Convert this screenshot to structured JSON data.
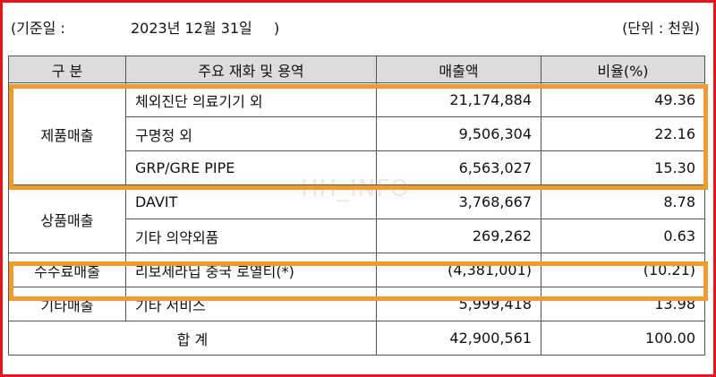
{
  "header": {
    "left": "(기준일 :",
    "date": "2023년 12월 31일",
    "close": ")",
    "unit": "(단위 : 천원)"
  },
  "table": {
    "columns": [
      "구  분",
      "주요 재화 및 용역",
      "매출액",
      "비율(%)"
    ],
    "groups": [
      {
        "category": "제품매출",
        "rows": [
          {
            "item": "체외진단 의료기기 외",
            "sales": "21,174,884",
            "ratio": "49.36"
          },
          {
            "item": "구명정 외",
            "sales": "9,506,304",
            "ratio": "22.16"
          },
          {
            "item": "GRP/GRE PIPE",
            "sales": "6,563,027",
            "ratio": "15.30"
          }
        ]
      },
      {
        "category": "상품매출",
        "rows": [
          {
            "item": "DAVIT",
            "sales": "3,768,667",
            "ratio": "8.78"
          },
          {
            "item": "기타 의약외품",
            "sales": "269,262",
            "ratio": "0.63"
          }
        ]
      },
      {
        "category": "수수료매출",
        "rows": [
          {
            "item": "리보세라닙 중국 로열티(*)",
            "sales": "(4,381,001)",
            "ratio": "(10.21)"
          }
        ]
      },
      {
        "category": "기타매출",
        "rows": [
          {
            "item": "기타 서비스",
            "sales": "5,999,418",
            "ratio": "13.98"
          }
        ]
      }
    ],
    "total": {
      "label": "합  계",
      "sales": "42,900,561",
      "ratio": "100.00"
    }
  },
  "watermark": "HH_INFO",
  "colors": {
    "frame": "#e8151b",
    "highlight": "#f39a2e",
    "header_bg": "#dcdcdc"
  }
}
